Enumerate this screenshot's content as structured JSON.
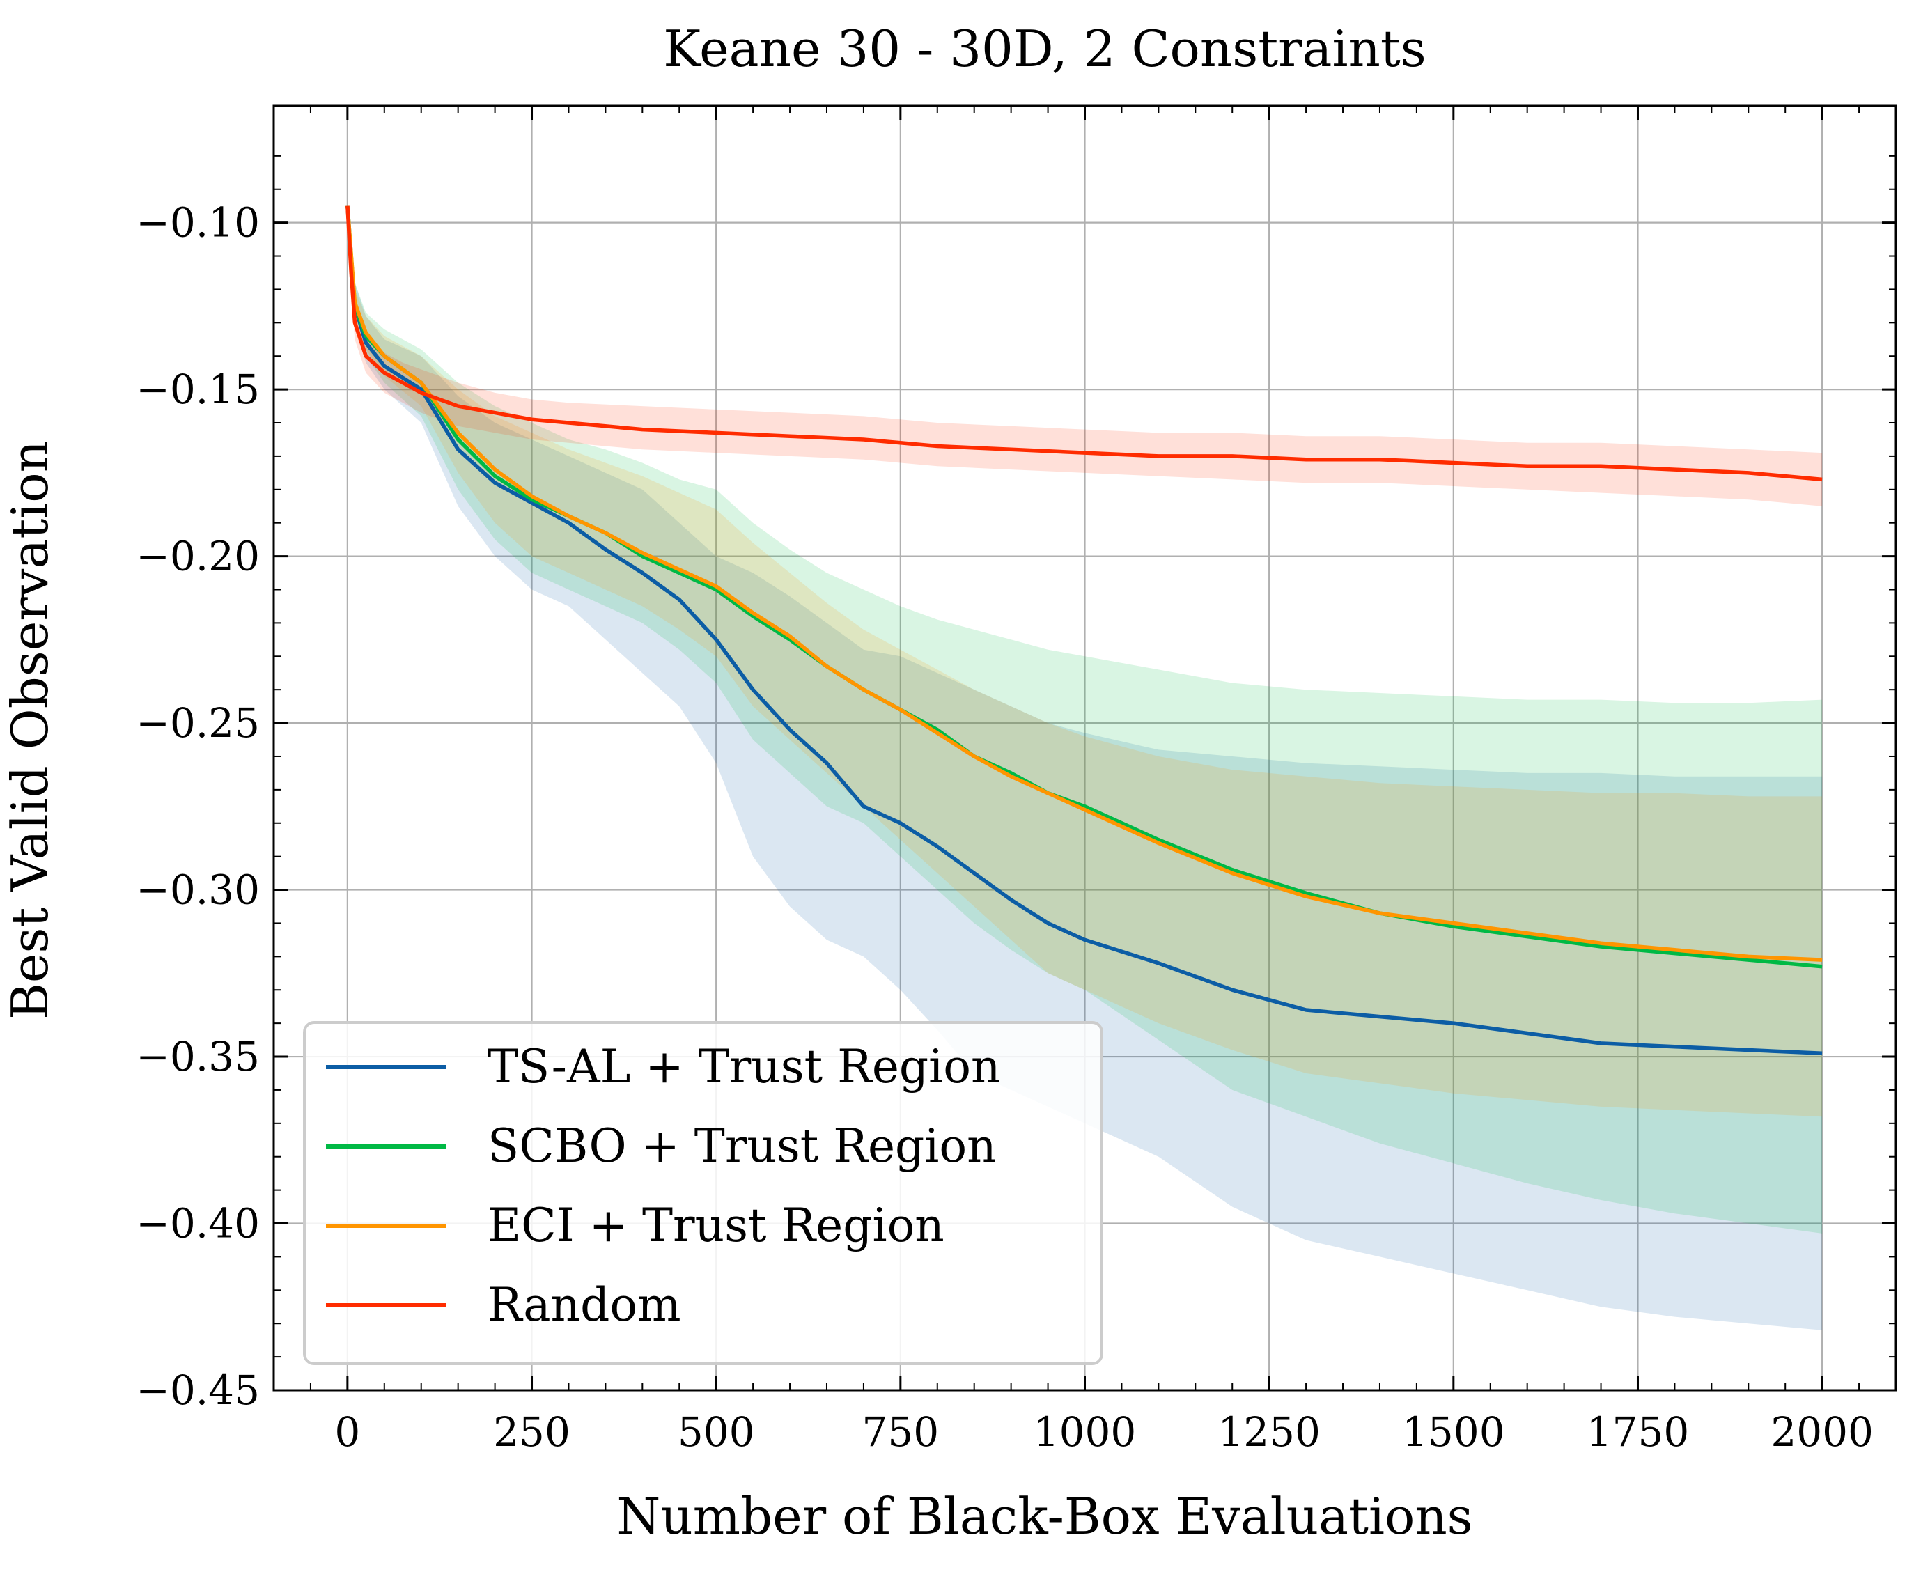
{
  "chart_data": {
    "type": "line",
    "title": "Keane 30 - 30D, 2 Constraints",
    "xlabel": "Number of Black-Box Evaluations",
    "ylabel": "Best Valid Observation",
    "xlim": [
      -100,
      2100
    ],
    "ylim": [
      -0.45,
      -0.065
    ],
    "x_ticks": [
      0,
      250,
      500,
      750,
      1000,
      1250,
      1500,
      1750,
      2000
    ],
    "x_tick_labels": [
      "0",
      "250",
      "500",
      "750",
      "1000",
      "1250",
      "1500",
      "1750",
      "2000"
    ],
    "y_ticks": [
      -0.1,
      -0.15,
      -0.2,
      -0.25,
      -0.3,
      -0.35,
      -0.4,
      -0.45
    ],
    "y_tick_labels": [
      "−0.10",
      "−0.15",
      "−0.20",
      "−0.25",
      "−0.30",
      "−0.35",
      "−0.40",
      "−0.45"
    ],
    "grid": true,
    "legend_position": "lower-left",
    "series": [
      {
        "name": "TS-AL + Trust Region",
        "color": "#0C5DA5",
        "x": [
          0,
          10,
          25,
          50,
          100,
          150,
          200,
          250,
          300,
          350,
          400,
          450,
          500,
          550,
          600,
          650,
          700,
          750,
          800,
          850,
          900,
          950,
          1000,
          1100,
          1200,
          1300,
          1400,
          1500,
          1600,
          1700,
          1800,
          1900,
          2000
        ],
        "y": [
          -0.095,
          -0.125,
          -0.136,
          -0.143,
          -0.15,
          -0.168,
          -0.178,
          -0.184,
          -0.19,
          -0.198,
          -0.205,
          -0.213,
          -0.225,
          -0.24,
          -0.252,
          -0.262,
          -0.275,
          -0.28,
          -0.287,
          -0.295,
          -0.303,
          -0.31,
          -0.315,
          -0.322,
          -0.33,
          -0.336,
          -0.338,
          -0.34,
          -0.343,
          -0.346,
          -0.347,
          -0.348,
          -0.349
        ],
        "lower": [
          -0.095,
          -0.13,
          -0.142,
          -0.15,
          -0.16,
          -0.185,
          -0.2,
          -0.21,
          -0.215,
          -0.225,
          -0.235,
          -0.245,
          -0.262,
          -0.29,
          -0.305,
          -0.315,
          -0.32,
          -0.33,
          -0.342,
          -0.355,
          -0.36,
          -0.365,
          -0.37,
          -0.38,
          -0.395,
          -0.405,
          -0.41,
          -0.415,
          -0.42,
          -0.425,
          -0.428,
          -0.43,
          -0.432
        ],
        "upper": [
          -0.095,
          -0.118,
          -0.128,
          -0.135,
          -0.14,
          -0.152,
          -0.16,
          -0.165,
          -0.17,
          -0.175,
          -0.18,
          -0.19,
          -0.2,
          -0.205,
          -0.212,
          -0.22,
          -0.228,
          -0.23,
          -0.235,
          -0.24,
          -0.245,
          -0.25,
          -0.253,
          -0.258,
          -0.26,
          -0.262,
          -0.263,
          -0.264,
          -0.265,
          -0.265,
          -0.266,
          -0.266,
          -0.266
        ]
      },
      {
        "name": "SCBO + Trust Region",
        "color": "#00B945",
        "x": [
          0,
          10,
          25,
          50,
          100,
          150,
          200,
          250,
          300,
          350,
          400,
          450,
          500,
          550,
          600,
          650,
          700,
          750,
          800,
          850,
          900,
          950,
          1000,
          1100,
          1200,
          1300,
          1400,
          1500,
          1600,
          1700,
          1800,
          1900,
          2000
        ],
        "y": [
          -0.095,
          -0.125,
          -0.134,
          -0.14,
          -0.148,
          -0.165,
          -0.176,
          -0.183,
          -0.188,
          -0.193,
          -0.2,
          -0.205,
          -0.21,
          -0.218,
          -0.225,
          -0.233,
          -0.24,
          -0.246,
          -0.252,
          -0.26,
          -0.265,
          -0.271,
          -0.275,
          -0.285,
          -0.294,
          -0.301,
          -0.307,
          -0.311,
          -0.314,
          -0.317,
          -0.319,
          -0.321,
          -0.323
        ],
        "lower": [
          -0.095,
          -0.13,
          -0.14,
          -0.148,
          -0.158,
          -0.18,
          -0.195,
          -0.205,
          -0.21,
          -0.215,
          -0.22,
          -0.228,
          -0.238,
          -0.255,
          -0.265,
          -0.275,
          -0.28,
          -0.29,
          -0.3,
          -0.31,
          -0.318,
          -0.325,
          -0.33,
          -0.345,
          -0.36,
          -0.368,
          -0.376,
          -0.382,
          -0.388,
          -0.393,
          -0.397,
          -0.4,
          -0.403
        ],
        "upper": [
          -0.095,
          -0.118,
          -0.127,
          -0.132,
          -0.138,
          -0.148,
          -0.155,
          -0.16,
          -0.165,
          -0.168,
          -0.172,
          -0.177,
          -0.18,
          -0.19,
          -0.198,
          -0.205,
          -0.21,
          -0.215,
          -0.219,
          -0.222,
          -0.225,
          -0.228,
          -0.23,
          -0.234,
          -0.238,
          -0.24,
          -0.241,
          -0.242,
          -0.243,
          -0.243,
          -0.244,
          -0.244,
          -0.243
        ]
      },
      {
        "name": "ECI + Trust Region",
        "color": "#FF9500",
        "x": [
          0,
          10,
          25,
          50,
          100,
          150,
          200,
          250,
          300,
          350,
          400,
          450,
          500,
          550,
          600,
          650,
          700,
          750,
          800,
          850,
          900,
          950,
          1000,
          1100,
          1200,
          1300,
          1400,
          1500,
          1600,
          1700,
          1800,
          1900,
          2000
        ],
        "y": [
          -0.095,
          -0.124,
          -0.133,
          -0.14,
          -0.148,
          -0.163,
          -0.174,
          -0.182,
          -0.188,
          -0.193,
          -0.199,
          -0.204,
          -0.209,
          -0.217,
          -0.224,
          -0.233,
          -0.24,
          -0.246,
          -0.253,
          -0.26,
          -0.266,
          -0.271,
          -0.276,
          -0.286,
          -0.295,
          -0.302,
          -0.307,
          -0.31,
          -0.313,
          -0.316,
          -0.318,
          -0.32,
          -0.321
        ],
        "lower": [
          -0.095,
          -0.128,
          -0.138,
          -0.146,
          -0.155,
          -0.175,
          -0.19,
          -0.2,
          -0.205,
          -0.21,
          -0.215,
          -0.222,
          -0.23,
          -0.245,
          -0.255,
          -0.265,
          -0.275,
          -0.285,
          -0.295,
          -0.305,
          -0.315,
          -0.325,
          -0.33,
          -0.34,
          -0.348,
          -0.355,
          -0.358,
          -0.361,
          -0.363,
          -0.365,
          -0.366,
          -0.367,
          -0.368
        ],
        "upper": [
          -0.095,
          -0.12,
          -0.128,
          -0.134,
          -0.14,
          -0.15,
          -0.158,
          -0.163,
          -0.168,
          -0.172,
          -0.176,
          -0.181,
          -0.186,
          -0.196,
          -0.205,
          -0.214,
          -0.222,
          -0.228,
          -0.234,
          -0.24,
          -0.245,
          -0.25,
          -0.254,
          -0.26,
          -0.264,
          -0.266,
          -0.268,
          -0.269,
          -0.27,
          -0.271,
          -0.271,
          -0.272,
          -0.272
        ]
      },
      {
        "name": "Random",
        "color": "#FF2C00",
        "x": [
          0,
          5,
          10,
          25,
          50,
          75,
          100,
          150,
          200,
          250,
          300,
          400,
          500,
          600,
          700,
          750,
          800,
          900,
          1000,
          1100,
          1200,
          1300,
          1400,
          1500,
          1600,
          1700,
          1800,
          1900,
          2000
        ],
        "y": [
          -0.095,
          -0.115,
          -0.13,
          -0.14,
          -0.145,
          -0.148,
          -0.151,
          -0.155,
          -0.157,
          -0.159,
          -0.16,
          -0.162,
          -0.163,
          -0.164,
          -0.165,
          -0.166,
          -0.167,
          -0.168,
          -0.169,
          -0.17,
          -0.17,
          -0.171,
          -0.171,
          -0.172,
          -0.173,
          -0.173,
          -0.174,
          -0.175,
          -0.177
        ],
        "lower": [
          -0.095,
          -0.12,
          -0.135,
          -0.145,
          -0.151,
          -0.154,
          -0.157,
          -0.161,
          -0.163,
          -0.165,
          -0.166,
          -0.168,
          -0.169,
          -0.17,
          -0.171,
          -0.172,
          -0.173,
          -0.174,
          -0.175,
          -0.176,
          -0.177,
          -0.178,
          -0.178,
          -0.179,
          -0.18,
          -0.181,
          -0.182,
          -0.183,
          -0.185
        ],
        "upper": [
          -0.095,
          -0.11,
          -0.125,
          -0.135,
          -0.139,
          -0.142,
          -0.144,
          -0.148,
          -0.151,
          -0.153,
          -0.154,
          -0.155,
          -0.156,
          -0.157,
          -0.158,
          -0.159,
          -0.16,
          -0.161,
          -0.162,
          -0.163,
          -0.163,
          -0.164,
          -0.164,
          -0.165,
          -0.166,
          -0.166,
          -0.167,
          -0.168,
          -0.169
        ]
      }
    ]
  }
}
